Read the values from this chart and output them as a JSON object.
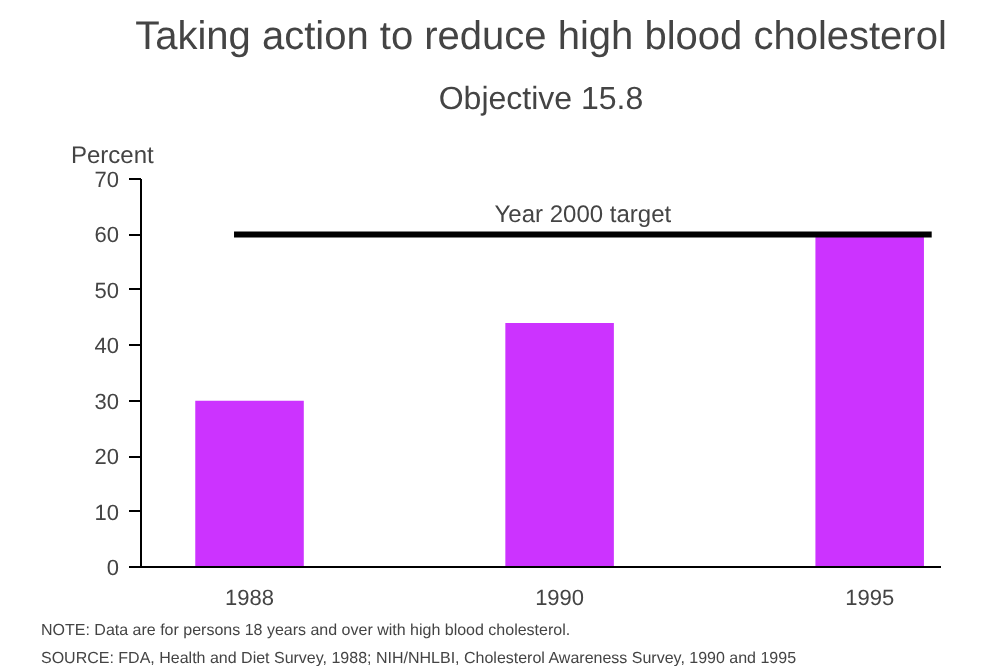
{
  "chart_data": {
    "type": "bar",
    "title": "Taking action to reduce high blood cholesterol",
    "subtitle": "Objective 15.8",
    "ylabel": "Percent",
    "categories": [
      "1988",
      "1990",
      "1995"
    ],
    "values": [
      30,
      44,
      60
    ],
    "color": "#cc33ff",
    "ylim": [
      0,
      70
    ],
    "yticks": [
      0,
      10,
      20,
      30,
      40,
      50,
      60,
      70
    ],
    "grid": false,
    "ref_lines": [
      {
        "axis": "y",
        "value": 60,
        "label": "Year 2000 target",
        "color": "#000000"
      }
    ],
    "annotations": [
      "NOTE: Data are for persons 18 years and over with high blood cholesterol.",
      "SOURCE: FDA, Health and Diet Survey, 1988; NIH/NHLBI, Cholesterol Awareness Survey, 1990 and 1995"
    ]
  }
}
